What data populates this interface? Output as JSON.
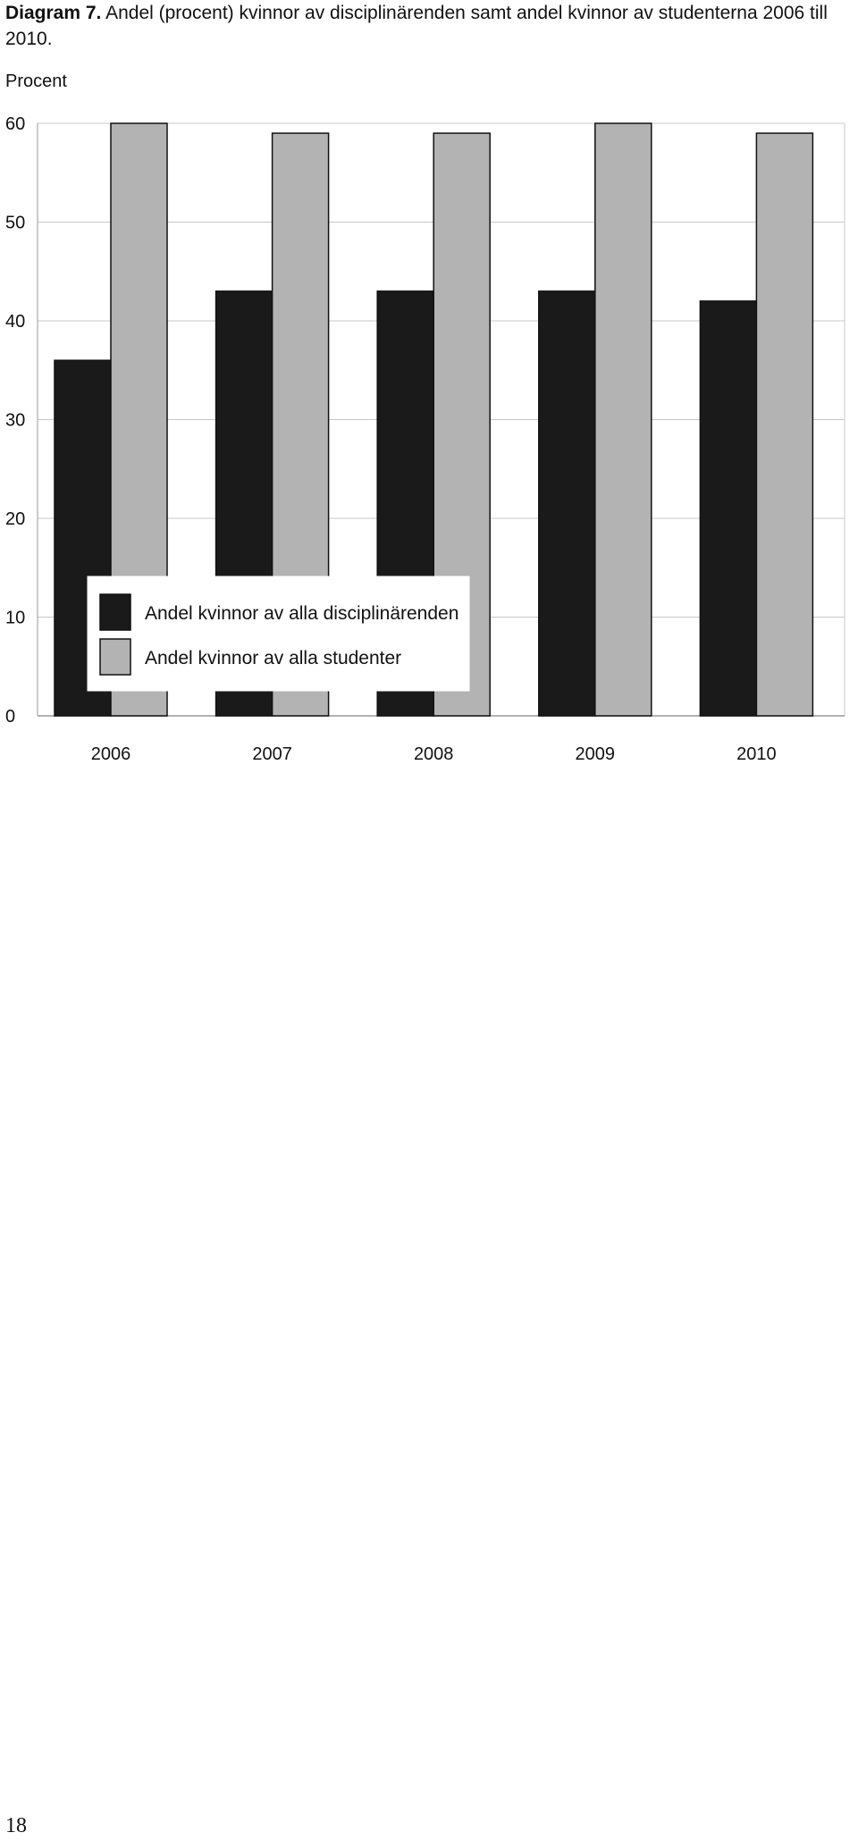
{
  "caption": {
    "lead": "Diagram 7.",
    "text": "Andel (procent) kvinnor av disciplinärenden samt andel kvinnor av studenterna 2006 till 2010."
  },
  "page_number": "18",
  "colors": {
    "series_dark": "#1a1a1a",
    "series_light": "#b3b3b3",
    "grid": "#c8c8c8",
    "axis": "#999999"
  },
  "chart_data": {
    "type": "bar",
    "title": "",
    "xlabel": "",
    "ylabel": "Procent",
    "ylim": [
      0,
      60
    ],
    "yticks": [
      0,
      10,
      20,
      30,
      40,
      50,
      60
    ],
    "categories": [
      "2006",
      "2007",
      "2008",
      "2009",
      "2010"
    ],
    "grid": true,
    "legend_position": "lower-left inside",
    "series": [
      {
        "name": "Andel kvinnor av alla disciplinärenden",
        "values": [
          36,
          43,
          43,
          43,
          42
        ]
      },
      {
        "name": "Andel kvinnor av alla studenter",
        "values": [
          60,
          59,
          59,
          60,
          59
        ]
      }
    ]
  }
}
